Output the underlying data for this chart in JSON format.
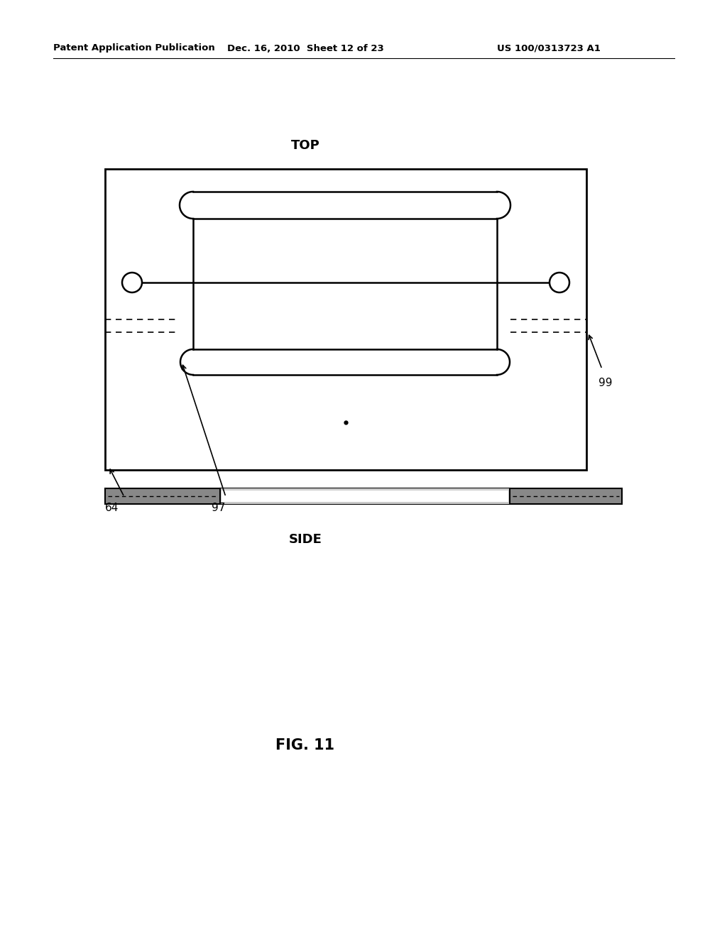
{
  "bg_color": "#ffffff",
  "header_left": "Patent Application Publication",
  "header_mid": "Dec. 16, 2010  Sheet 12 of 23",
  "header_right": "US 100/0313723 A1",
  "top_label": "TOP",
  "side_label": "SIDE",
  "fig_label": "FIG. 11",
  "label_64": "64",
  "label_97": "97",
  "label_99": "99",
  "line_color": "#000000"
}
